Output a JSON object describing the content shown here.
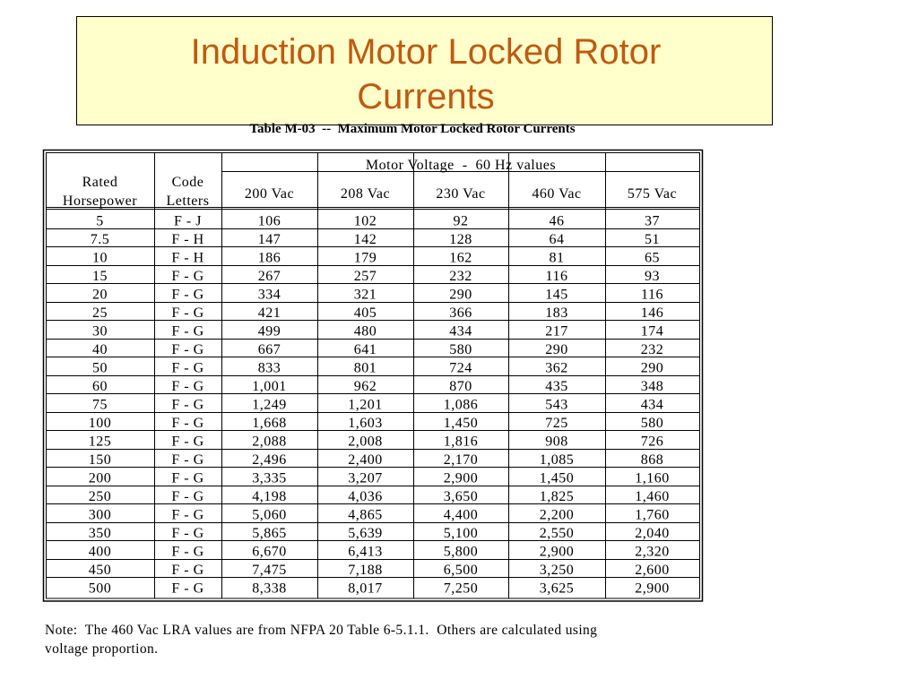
{
  "title": [
    "Induction Motor Locked Rotor",
    "Currents"
  ],
  "caption": "Table M-03  --  Maximum Motor Locked Rotor Currents",
  "table": {
    "header": {
      "rated": [
        "Rated",
        "Horsepower"
      ],
      "code": [
        "Code",
        "Letters"
      ],
      "group": "Motor Voltage  -  60 Hz values",
      "voltages": [
        "200 Vac",
        "208 Vac",
        "230 Vac",
        "460 Vac",
        "575 Vac"
      ]
    },
    "rows": [
      [
        "5",
        "F - J",
        "106",
        "102",
        "92",
        "46",
        "37"
      ],
      [
        "7.5",
        "F - H",
        "147",
        "142",
        "128",
        "64",
        "51"
      ],
      [
        "10",
        "F - H",
        "186",
        "179",
        "162",
        "81",
        "65"
      ],
      [
        "15",
        "F - G",
        "267",
        "257",
        "232",
        "116",
        "93"
      ],
      [
        "20",
        "F - G",
        "334",
        "321",
        "290",
        "145",
        "116"
      ],
      [
        "25",
        "F - G",
        "421",
        "405",
        "366",
        "183",
        "146"
      ],
      [
        "30",
        "F - G",
        "499",
        "480",
        "434",
        "217",
        "174"
      ],
      [
        "40",
        "F - G",
        "667",
        "641",
        "580",
        "290",
        "232"
      ],
      [
        "50",
        "F - G",
        "833",
        "801",
        "724",
        "362",
        "290"
      ],
      [
        "60",
        "F - G",
        "1,001",
        "962",
        "870",
        "435",
        "348"
      ],
      [
        "75",
        "F - G",
        "1,249",
        "1,201",
        "1,086",
        "543",
        "434"
      ],
      [
        "100",
        "F - G",
        "1,668",
        "1,603",
        "1,450",
        "725",
        "580"
      ],
      [
        "125",
        "F - G",
        "2,088",
        "2,008",
        "1,816",
        "908",
        "726"
      ],
      [
        "150",
        "F - G",
        "2,496",
        "2,400",
        "2,170",
        "1,085",
        "868"
      ],
      [
        "200",
        "F - G",
        "3,335",
        "3,207",
        "2,900",
        "1,450",
        "1,160"
      ],
      [
        "250",
        "F - G",
        "4,198",
        "4,036",
        "3,650",
        "1,825",
        "1,460"
      ],
      [
        "300",
        "F - G",
        "5,060",
        "4,865",
        "4,400",
        "2,200",
        "1,760"
      ],
      [
        "350",
        "F - G",
        "5,865",
        "5,639",
        "5,100",
        "2,550",
        "2,040"
      ],
      [
        "400",
        "F - G",
        "6,670",
        "6,413",
        "5,800",
        "2,900",
        "2,320"
      ],
      [
        "450",
        "F - G",
        "7,475",
        "7,188",
        "6,500",
        "3,250",
        "2,600"
      ],
      [
        "500",
        "F - G",
        "8,338",
        "8,017",
        "7,250",
        "3,625",
        "2,900"
      ]
    ]
  },
  "note": [
    "Note:  The 460 Vac LRA values are from NFPA 20 Table 6-5.1.1.  Others are calculated using",
    "voltage proportion."
  ]
}
